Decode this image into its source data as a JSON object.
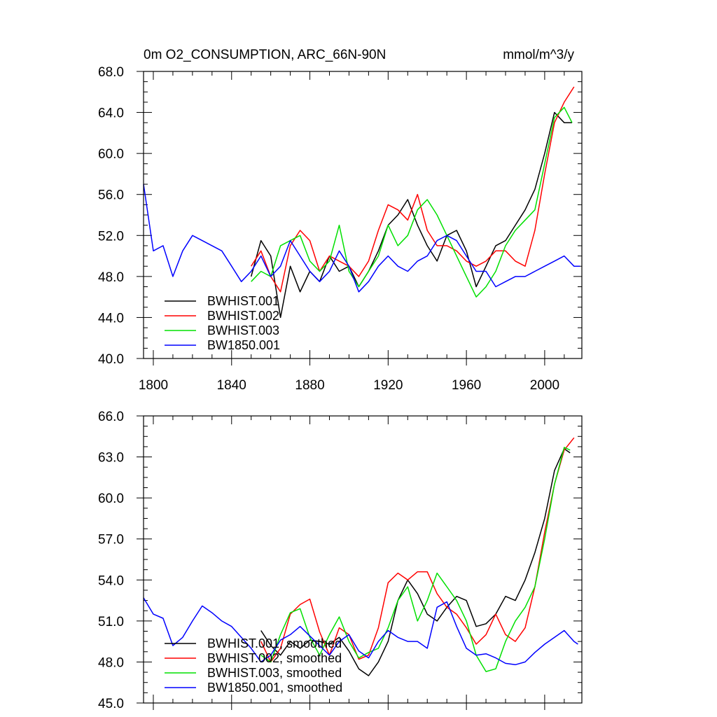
{
  "chart_data": [
    {
      "type": "line",
      "title_left": "0m O2_CONSUMPTION, ARC_66N-90N",
      "title_right": "mmol/m^3/y",
      "xlim": [
        1795,
        2019
      ],
      "ylim": [
        40,
        68
      ],
      "x_ticks": [
        1800,
        1840,
        1880,
        1920,
        1960,
        2000
      ],
      "x_tick_labels": [
        "1800",
        "1840",
        "1880",
        "1920",
        "1960",
        "2000"
      ],
      "y_ticks": [
        40,
        44,
        48,
        52,
        56,
        60,
        64,
        68
      ],
      "y_tick_labels": [
        "40.0",
        "44.0",
        "48.0",
        "52.0",
        "56.0",
        "60.0",
        "64.0",
        "68.0"
      ],
      "legend_position": "bottom-left",
      "series": [
        {
          "name": "BWHIST.001",
          "color": "#000000",
          "x": [
            1850,
            1855,
            1860,
            1865,
            1870,
            1875,
            1880,
            1885,
            1890,
            1895,
            1900,
            1905,
            1910,
            1915,
            1920,
            1925,
            1930,
            1935,
            1940,
            1945,
            1950,
            1955,
            1960,
            1965,
            1970,
            1975,
            1980,
            1985,
            1990,
            1995,
            2000,
            2005,
            2010,
            2014
          ],
          "y": [
            48.0,
            51.5,
            50.0,
            44.0,
            49.0,
            46.5,
            48.5,
            47.5,
            50.0,
            48.5,
            49.0,
            47.0,
            48.5,
            50.5,
            53.0,
            54.0,
            55.5,
            53.0,
            51.0,
            49.5,
            52.0,
            52.5,
            50.5,
            47.0,
            49.0,
            51.0,
            51.5,
            53.0,
            54.5,
            56.5,
            60.0,
            64.0,
            63.0,
            63.0
          ]
        },
        {
          "name": "BWHIST.002",
          "color": "#ff0000",
          "x": [
            1850,
            1855,
            1860,
            1865,
            1870,
            1875,
            1880,
            1885,
            1890,
            1895,
            1900,
            1905,
            1910,
            1915,
            1920,
            1925,
            1930,
            1935,
            1940,
            1945,
            1950,
            1955,
            1960,
            1965,
            1970,
            1975,
            1980,
            1985,
            1990,
            1995,
            2000,
            2005,
            2010,
            2015
          ],
          "y": [
            49.0,
            50.5,
            48.0,
            46.5,
            51.0,
            52.5,
            51.5,
            48.5,
            50.0,
            49.5,
            49.0,
            48.0,
            49.5,
            52.5,
            55.0,
            54.5,
            53.5,
            56.0,
            52.5,
            51.0,
            51.0,
            50.5,
            49.5,
            49.0,
            49.5,
            50.5,
            50.5,
            49.5,
            49.0,
            52.5,
            58.0,
            63.0,
            65.0,
            66.5
          ]
        },
        {
          "name": "BWHIST.003",
          "color": "#00e000",
          "x": [
            1850,
            1855,
            1860,
            1865,
            1870,
            1875,
            1880,
            1885,
            1890,
            1895,
            1900,
            1905,
            1910,
            1915,
            1920,
            1925,
            1930,
            1935,
            1940,
            1945,
            1950,
            1955,
            1960,
            1965,
            1970,
            1975,
            1980,
            1985,
            1990,
            1995,
            2000,
            2005,
            2010,
            2014
          ],
          "y": [
            47.5,
            48.5,
            48.0,
            51.0,
            51.5,
            52.0,
            49.5,
            48.5,
            49.5,
            53.0,
            48.5,
            47.0,
            48.5,
            50.0,
            53.0,
            51.0,
            52.0,
            54.5,
            55.5,
            54.0,
            52.0,
            50.0,
            48.0,
            46.0,
            47.0,
            48.5,
            51.0,
            52.5,
            53.5,
            54.5,
            59.0,
            63.5,
            64.5,
            63.0
          ]
        },
        {
          "name": "BW1850.001",
          "color": "#0000ff",
          "x": [
            1795,
            1800,
            1805,
            1810,
            1815,
            1820,
            1825,
            1830,
            1835,
            1840,
            1845,
            1850,
            1855,
            1860,
            1865,
            1870,
            1875,
            1880,
            1885,
            1890,
            1895,
            1900,
            1905,
            1910,
            1915,
            1920,
            1925,
            1930,
            1935,
            1940,
            1945,
            1950,
            1955,
            1960,
            1965,
            1970,
            1975,
            1980,
            1985,
            1990,
            1995,
            2000,
            2005,
            2010,
            2015,
            2018
          ],
          "y": [
            57.0,
            50.5,
            51.0,
            48.0,
            50.5,
            52.0,
            51.5,
            51.0,
            50.5,
            49.0,
            47.5,
            48.5,
            50.0,
            48.0,
            49.0,
            51.5,
            50.0,
            48.5,
            47.5,
            48.5,
            50.5,
            49.0,
            46.5,
            47.5,
            49.0,
            50.0,
            49.0,
            48.5,
            49.5,
            50.0,
            51.5,
            52.0,
            51.5,
            50.0,
            48.5,
            48.5,
            47.0,
            47.5,
            48.0,
            48.0,
            48.5,
            49.0,
            49.5,
            50.0,
            49.0,
            49.0
          ]
        }
      ]
    },
    {
      "type": "line",
      "xlim": [
        1795,
        2019
      ],
      "ylim": [
        45,
        66
      ],
      "x_ticks": [
        1800,
        1840,
        1880,
        1920,
        1960,
        2000
      ],
      "y_ticks": [
        45,
        48,
        51,
        54,
        57,
        60,
        63,
        66
      ],
      "y_tick_labels": [
        "45.0",
        "48.0",
        "51.0",
        "54.0",
        "57.0",
        "60.0",
        "63.0",
        "66.0"
      ],
      "legend_position": "bottom-left",
      "series": [
        {
          "name": "BWHIST.001, smoothed",
          "color": "#000000",
          "x": [
            1855,
            1860,
            1865,
            1870,
            1875,
            1880,
            1885,
            1890,
            1895,
            1900,
            1905,
            1910,
            1915,
            1920,
            1925,
            1930,
            1935,
            1940,
            1945,
            1950,
            1955,
            1960,
            1965,
            1970,
            1975,
            1980,
            1985,
            1990,
            1995,
            2000,
            2005,
            2010,
            2013
          ],
          "y": [
            50.3,
            49.2,
            48.5,
            49.5,
            49.0,
            49.6,
            49.5,
            49.3,
            49.8,
            48.8,
            47.5,
            47.0,
            48.0,
            49.5,
            52.5,
            54.0,
            53.0,
            51.5,
            51.0,
            52.0,
            52.8,
            52.5,
            50.6,
            50.8,
            51.5,
            52.8,
            52.5,
            54.0,
            56.0,
            58.5,
            62.0,
            63.6,
            63.3
          ]
        },
        {
          "name": "BWHIST.002, smoothed",
          "color": "#ff0000",
          "x": [
            1855,
            1860,
            1865,
            1870,
            1875,
            1880,
            1885,
            1890,
            1895,
            1900,
            1905,
            1910,
            1915,
            1920,
            1925,
            1930,
            1935,
            1940,
            1945,
            1950,
            1955,
            1960,
            1965,
            1970,
            1975,
            1980,
            1985,
            1990,
            1995,
            2000,
            2005,
            2010,
            2015
          ],
          "y": [
            49.5,
            48.0,
            49.0,
            51.5,
            52.2,
            52.6,
            50.2,
            48.5,
            50.5,
            50.0,
            48.2,
            48.5,
            50.5,
            53.8,
            54.5,
            54.0,
            54.6,
            54.6,
            53.0,
            52.0,
            51.5,
            50.5,
            49.3,
            50.0,
            51.5,
            50.0,
            49.5,
            50.5,
            53.5,
            57.5,
            61.0,
            63.5,
            64.4
          ]
        },
        {
          "name": "BWHIST.003, smoothed",
          "color": "#00e000",
          "x": [
            1855,
            1860,
            1865,
            1870,
            1875,
            1880,
            1885,
            1890,
            1895,
            1900,
            1905,
            1910,
            1915,
            1920,
            1925,
            1930,
            1935,
            1940,
            1945,
            1950,
            1955,
            1960,
            1965,
            1970,
            1975,
            1980,
            1985,
            1990,
            1995,
            2000,
            2005,
            2010,
            2013
          ],
          "y": [
            48.5,
            48.0,
            50.0,
            51.6,
            51.9,
            49.8,
            48.5,
            50.0,
            51.3,
            49.5,
            48.3,
            48.7,
            49.0,
            50.5,
            52.5,
            53.5,
            51.0,
            52.5,
            54.5,
            53.5,
            52.5,
            51.0,
            48.5,
            47.3,
            47.5,
            49.5,
            51.0,
            52.0,
            53.5,
            57.0,
            61.0,
            63.7,
            63.5
          ]
        },
        {
          "name": "BW1850.001, smoothed",
          "color": "#0000ff",
          "x": [
            1795,
            1800,
            1805,
            1810,
            1815,
            1820,
            1825,
            1830,
            1835,
            1840,
            1845,
            1850,
            1855,
            1860,
            1865,
            1870,
            1875,
            1880,
            1885,
            1890,
            1895,
            1900,
            1905,
            1910,
            1915,
            1920,
            1925,
            1930,
            1935,
            1940,
            1945,
            1950,
            1955,
            1960,
            1965,
            1970,
            1975,
            1980,
            1985,
            1990,
            1995,
            2000,
            2005,
            2010,
            2015,
            2017
          ],
          "y": [
            52.7,
            51.5,
            51.2,
            49.2,
            49.8,
            51.0,
            52.1,
            51.6,
            51.0,
            50.6,
            49.8,
            49.0,
            48.0,
            48.5,
            49.6,
            50.0,
            50.6,
            49.9,
            49.2,
            48.5,
            49.5,
            50.0,
            48.8,
            48.3,
            49.5,
            50.3,
            49.8,
            49.5,
            49.5,
            49.0,
            52.0,
            52.4,
            50.6,
            49.0,
            48.5,
            48.6,
            48.3,
            47.9,
            47.8,
            48.0,
            48.7,
            49.3,
            49.8,
            50.3,
            49.5,
            49.3
          ]
        }
      ]
    }
  ]
}
